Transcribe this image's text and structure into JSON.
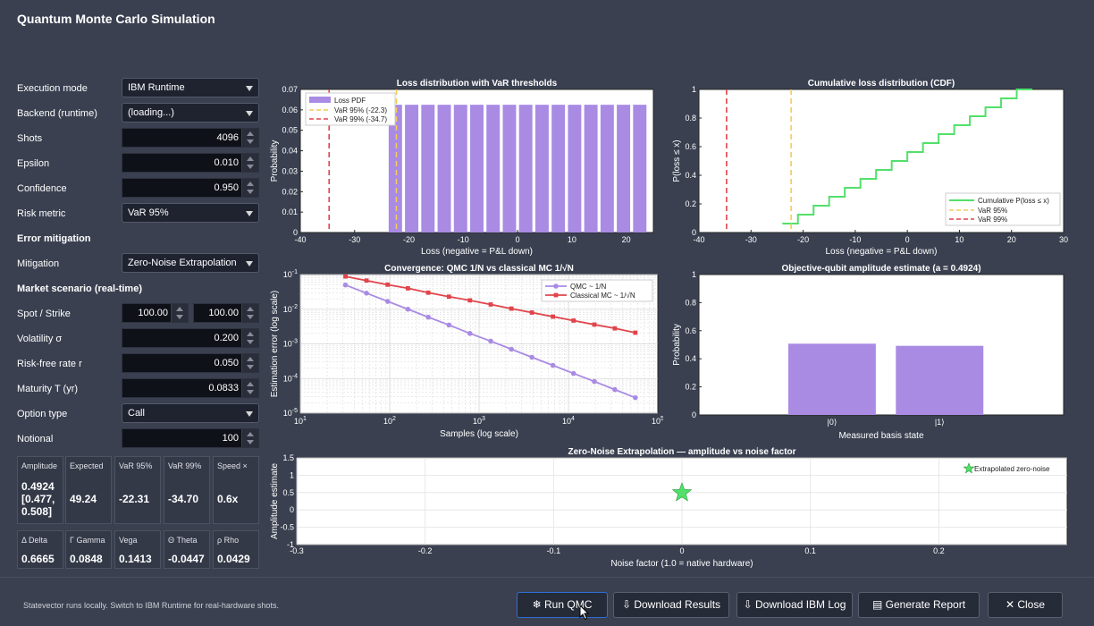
{
  "window": {
    "title": "Quantum Monte Carlo Simulation"
  },
  "form": {
    "execution_mode": {
      "label": "Execution mode",
      "value": "IBM Runtime"
    },
    "backend": {
      "label": "Backend (runtime)",
      "value": "(loading...)"
    },
    "shots": {
      "label": "Shots",
      "value": "4096"
    },
    "epsilon": {
      "label": "Epsilon",
      "value": "0.010"
    },
    "confidence": {
      "label": "Confidence",
      "value": "0.950"
    },
    "risk_metric": {
      "label": "Risk metric",
      "value": "VaR 95%"
    },
    "error_mitigation_heading": "Error mitigation",
    "mitigation": {
      "label": "Mitigation",
      "value": "Zero-Noise Extrapolation"
    },
    "market_heading": "Market scenario (real-time)",
    "spot_strike": {
      "label": "Spot / Strike",
      "spot": "100.00",
      "strike": "100.00"
    },
    "volatility": {
      "label": "Volatility σ",
      "value": "0.200"
    },
    "risk_free": {
      "label": "Risk-free rate r",
      "value": "0.050"
    },
    "maturity": {
      "label": "Maturity T (yr)",
      "value": "0.0833"
    },
    "option_type": {
      "label": "Option type",
      "value": "Call"
    },
    "notional": {
      "label": "Notional",
      "value": "100"
    }
  },
  "metrics": [
    {
      "label": "Amplitude",
      "value": "0.4924\n[0.477,\n0.508]"
    },
    {
      "label": "Expected",
      "value": "49.24"
    },
    {
      "label": "VaR 95%",
      "value": "-22.31"
    },
    {
      "label": "VaR 99%",
      "value": "-34.70"
    },
    {
      "label": "Speed ×",
      "value": "0.6x"
    }
  ],
  "greeks": [
    {
      "label": "Δ Delta",
      "value": "0.6665"
    },
    {
      "label": "Γ Gamma",
      "value": "0.0848"
    },
    {
      "label": "Vega",
      "value": "0.1413"
    },
    {
      "label": "Θ Theta",
      "value": "-0.0447"
    },
    {
      "label": "ρ Rho",
      "value": "0.0429"
    }
  ],
  "status": "Statevector runs locally. Switch to IBM Runtime for real-hardware shots.",
  "buttons": {
    "run": "❄ Run QMC",
    "download_results": "⇩ Download Results",
    "download_log": "⇩ Download IBM Log",
    "report": "▤ Generate Report",
    "close": "✕ Close"
  },
  "colors": {
    "purple": "#a98be4",
    "red": "#e0454b",
    "yellow": "#f4c95d",
    "green": "#52e06b",
    "plot_bg": "#ffffff"
  },
  "chart_data": [
    {
      "type": "bar",
      "title": "Loss distribution with VaR thresholds",
      "xlabel": "Loss (negative = P&L down)",
      "ylabel": "Probability",
      "xlim": [
        -40,
        25
      ],
      "ylim": [
        0,
        0.07
      ],
      "xticks": [
        "-40",
        "-30",
        "-20",
        "-10",
        "0",
        "10",
        "20"
      ],
      "yticks": [
        "0",
        "0.01",
        "0.02",
        "0.03",
        "0.04",
        "0.05",
        "0.06",
        "0.07"
      ],
      "x": [
        -22.5,
        -19.5,
        -16.5,
        -13.5,
        -10.5,
        -7.5,
        -4.5,
        -1.5,
        1.5,
        4.5,
        7.5,
        10.5,
        13.5,
        16.5,
        19.5,
        22.5
      ],
      "values": [
        0.0625,
        0.0625,
        0.0625,
        0.0625,
        0.0625,
        0.0625,
        0.0625,
        0.0625,
        0.0625,
        0.0625,
        0.0625,
        0.0625,
        0.0625,
        0.0625,
        0.0625,
        0.0625
      ],
      "vlines": [
        {
          "x": -22.31,
          "color": "yellow"
        },
        {
          "x": -34.7,
          "color": "red"
        }
      ],
      "legend": [
        "Loss PDF",
        "VaR 95% (-22.3)",
        "VaR 99% (-34.7)"
      ],
      "legend_position": "top-left"
    },
    {
      "type": "line",
      "title": "Cumulative loss distribution (CDF)",
      "xlabel": "Loss (negative = P&L down)",
      "ylabel": "P(loss ≤ x)",
      "xlim": [
        -40,
        30
      ],
      "ylim": [
        0,
        1
      ],
      "xticks": [
        "-40",
        "-30",
        "-20",
        "-10",
        "0",
        "10",
        "20",
        "30"
      ],
      "yticks": [
        "0",
        "0.2",
        "0.4",
        "0.6",
        "0.8",
        "1"
      ],
      "step_x": [
        -24,
        -21,
        -18,
        -15,
        -12,
        -9,
        -6,
        -3,
        0,
        3,
        6,
        9,
        12,
        15,
        18,
        21,
        24
      ],
      "step_y": [
        0.0625,
        0.125,
        0.1875,
        0.25,
        0.3125,
        0.375,
        0.4375,
        0.5,
        0.5625,
        0.625,
        0.6875,
        0.75,
        0.8125,
        0.875,
        0.9375,
        1.0,
        1.0
      ],
      "vlines": [
        {
          "x": -22.31,
          "color": "yellow"
        },
        {
          "x": -34.7,
          "color": "red"
        }
      ],
      "legend": [
        "Cumulative P(loss ≤ x)",
        "VaR 95%",
        "VaR 99%"
      ],
      "legend_position": "bottom-right"
    },
    {
      "type": "line",
      "title": "Convergence: QMC 1/N vs classical MC 1/√N",
      "xlabel": "Samples (log scale)",
      "ylabel": "Estimation error (log scale)",
      "scale": "log-log",
      "xticks": [
        "10^1",
        "10^2",
        "10^3",
        "10^4",
        "10^5"
      ],
      "yticks": [
        "10^-1",
        "10^-2",
        "10^-3",
        "10^-4",
        "10^-5"
      ],
      "x": [
        32,
        55,
        95,
        160,
        270,
        460,
        790,
        1350,
        2300,
        3900,
        6700,
        11400,
        19500,
        33000,
        56000
      ],
      "series": [
        {
          "name": "QMC ~ 1/N",
          "values": [
            0.05,
            0.029,
            0.0168,
            0.01,
            0.0059,
            0.0035,
            0.002,
            0.0012,
            0.0007,
            0.00041,
            0.00024,
            0.00014,
            8.2e-05,
            4.8e-05,
            2.8e-05
          ]
        },
        {
          "name": "Classical MC ~ 1/√N",
          "values": [
            0.088,
            0.067,
            0.051,
            0.04,
            0.03,
            0.023,
            0.018,
            0.0137,
            0.0104,
            0.008,
            0.0061,
            0.0047,
            0.0036,
            0.0028,
            0.0021
          ]
        }
      ],
      "legend_position": "top-right"
    },
    {
      "type": "bar",
      "title": "Objective-qubit amplitude estimate (a = 0.4924)",
      "xlabel": "Measured basis state",
      "ylabel": "Probability",
      "categories": [
        "|0⟩",
        "|1⟩"
      ],
      "values": [
        0.5076,
        0.4924
      ],
      "ylim": [
        0,
        1
      ],
      "yticks": [
        "0",
        "0.2",
        "0.4",
        "0.6",
        "0.8",
        "1"
      ]
    },
    {
      "type": "scatter",
      "title": "Zero-Noise Extrapolation — amplitude vs noise factor",
      "xlabel": "Noise factor (1.0 = native hardware)",
      "ylabel": "Amplitude estimate",
      "xlim": [
        -0.3,
        0.3
      ],
      "ylim": [
        -1,
        1.5
      ],
      "xticks": [
        "-0.3",
        "-0.2",
        "-0.1",
        "0",
        "0.1",
        "0.2"
      ],
      "yticks": [
        "-1",
        "-0.5",
        "0",
        "0.5",
        "1",
        "1.5"
      ],
      "points": [
        {
          "x": 0,
          "y": 0.4924
        }
      ],
      "legend": [
        "Extrapolated zero-noise"
      ],
      "legend_position": "top-right"
    }
  ]
}
